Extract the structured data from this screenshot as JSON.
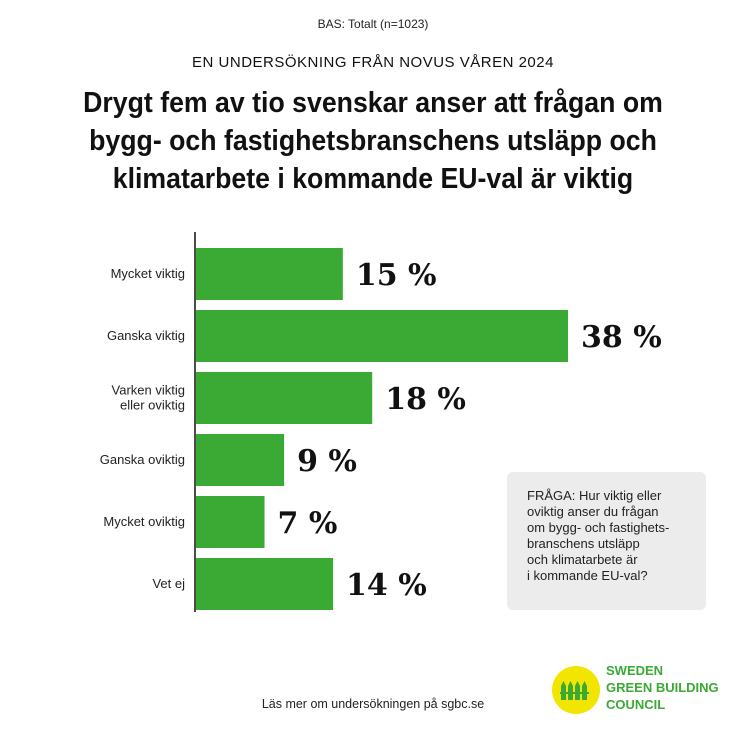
{
  "base": "BAS: Totalt (n=1023)",
  "kicker": "EN UNDERSÖKNING FRÅN NOVUS VÅREN 2024",
  "title_lines": [
    "Drygt fem av tio svenskar anser att frågan om",
    "bygg- och fastighetsbranschens utsläpp och",
    "klimatarbete i kommande EU-val är viktig"
  ],
  "question_lines": [
    "FRÅGA: Hur viktig eller",
    "oviktig anser du frågan",
    "om bygg- och fastighets-",
    "branschens utsläpp",
    "och klimatarbete är",
    "i kommande EU-val?"
  ],
  "footer": "Läs mer om undersökningen på sgbc.se",
  "logo": {
    "icon": "sweden-green-building-council-logo",
    "lines": [
      "SWEDEN",
      "GREEN BUILDING",
      "COUNCIL"
    ]
  },
  "colors": {
    "bar": "#3aaa35",
    "logo_yellow": "#f2e500",
    "logo_green": "#3aaa35",
    "panel": "#ececec"
  },
  "chart_data": {
    "type": "bar",
    "orientation": "horizontal",
    "categories": [
      [
        "Mycket viktig"
      ],
      [
        "Ganska viktig"
      ],
      [
        "Varken viktig",
        "eller oviktig"
      ],
      [
        "Ganska oviktig"
      ],
      [
        "Mycket oviktig"
      ],
      [
        "Vet ej"
      ]
    ],
    "values": [
      15,
      38,
      18,
      9,
      7,
      14
    ],
    "value_labels": [
      "15 %",
      "38 %",
      "18 %",
      "9 %",
      "7 %",
      "14 %"
    ],
    "unit": "%",
    "xlim": [
      0,
      38
    ],
    "grid": false,
    "legend": "none"
  }
}
